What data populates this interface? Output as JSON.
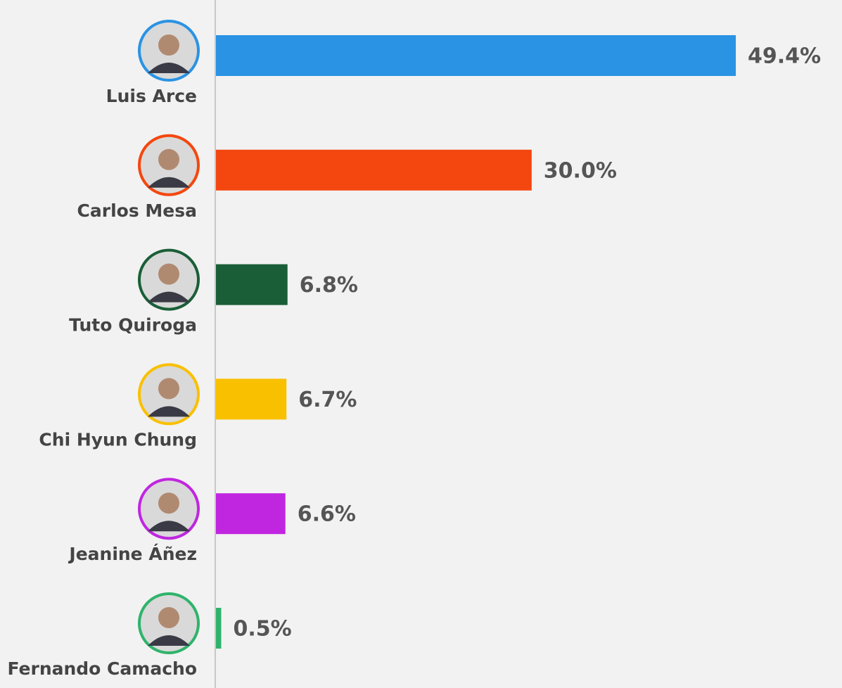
{
  "chart_data": {
    "type": "bar",
    "orientation": "horizontal",
    "categories": [
      "Luis Arce",
      "Carlos Mesa",
      "Tuto Quiroga",
      "Chi Hyun Chung",
      "Jeanine Áñez",
      "Fernando Camacho"
    ],
    "values": [
      49.4,
      30.0,
      6.8,
      6.7,
      6.6,
      0.5
    ],
    "value_labels": [
      "49.4%",
      "30.0%",
      "6.8%",
      "6.7%",
      "6.6%",
      "0.5%"
    ],
    "colors": [
      "#2a93e3",
      "#f4470f",
      "#1a5e37",
      "#f9c000",
      "#c026e0",
      "#2fb36b"
    ]
  }
}
